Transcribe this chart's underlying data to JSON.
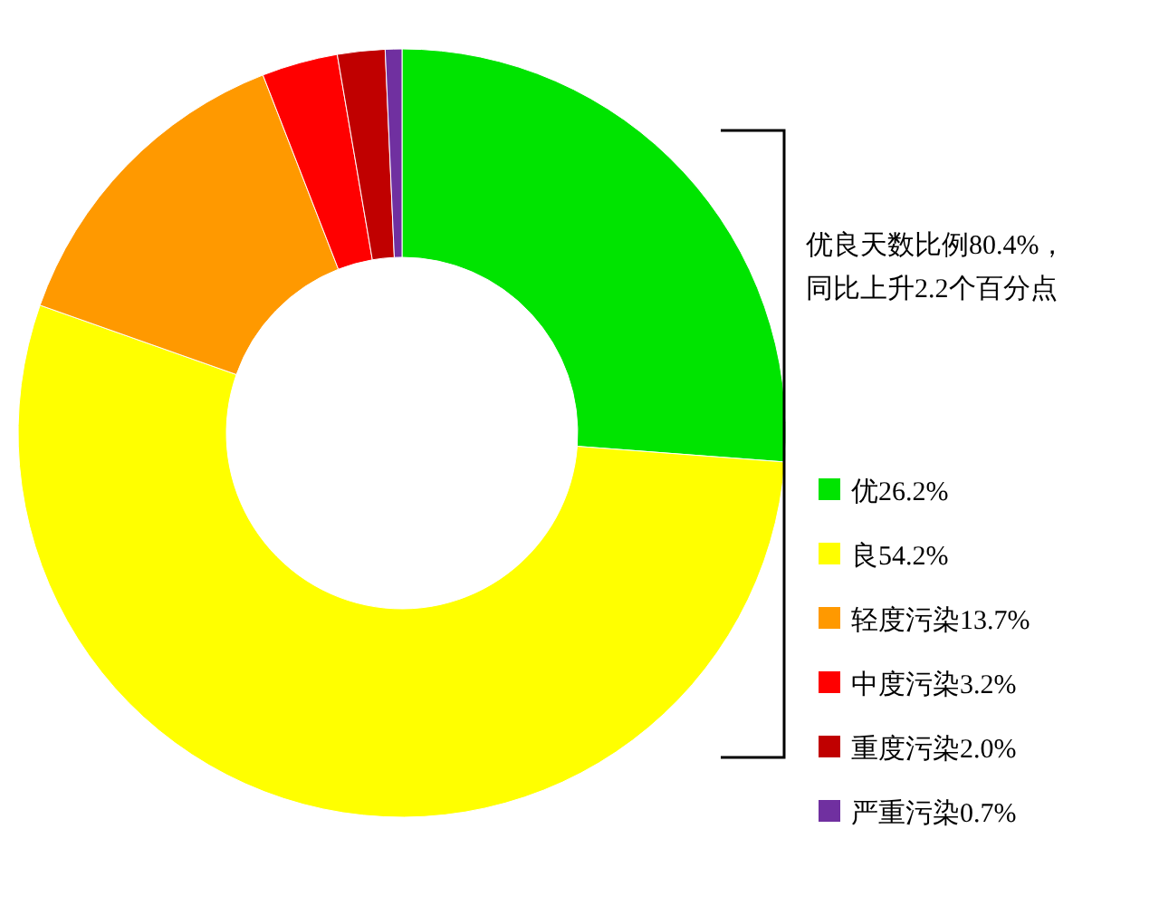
{
  "chart_data": {
    "type": "donut",
    "categories": [
      "优26.2%",
      "良54.2%",
      "轻度污染13.7%",
      "中度污染3.2%",
      "重度污染2.0%",
      "严重污染0.7%"
    ],
    "values": [
      26.2,
      54.2,
      13.7,
      3.2,
      2.0,
      0.7
    ],
    "colors": [
      "#00e400",
      "#ffff00",
      "#ff9900",
      "#ff0000",
      "#c00000",
      "#7030a0"
    ],
    "legend": "right",
    "annotations": [
      "优良天数比例80.4%，",
      "同比上升2.2个百分点"
    ]
  }
}
